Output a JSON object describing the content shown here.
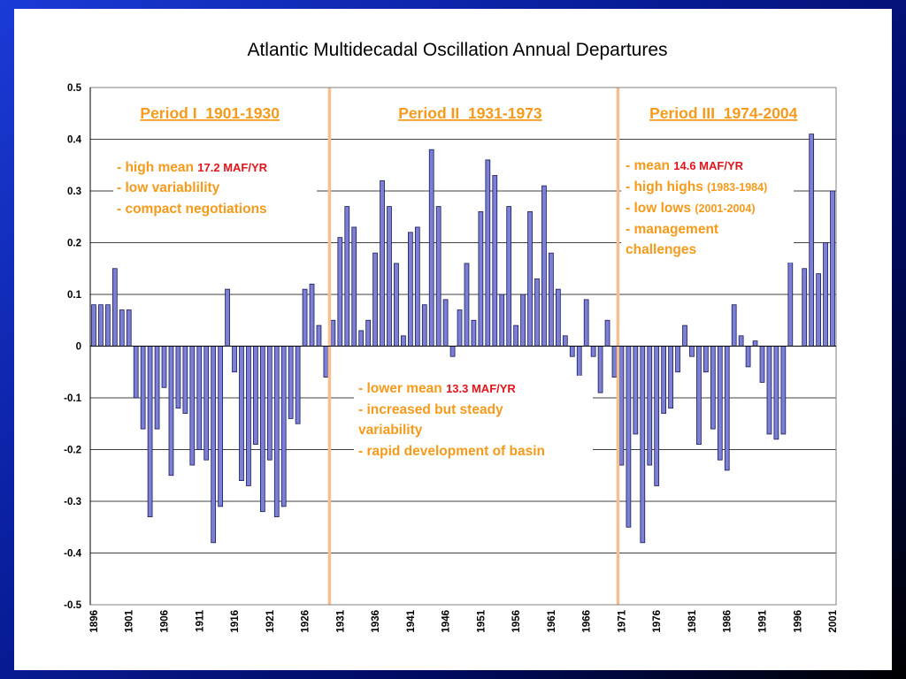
{
  "chart_data": {
    "type": "bar",
    "title": "Atlantic Multidecadal Oscillation Annual Departures",
    "ylim": [
      -0.5,
      0.5
    ],
    "yticks": [
      "0.5",
      "0.4",
      "0.3",
      "0.2",
      "0.1",
      "0",
      "-0.1",
      "-0.2",
      "-0.3",
      "-0.4",
      "-0.5"
    ],
    "ytick_values": [
      0.5,
      0.4,
      0.3,
      0.2,
      0.1,
      0,
      -0.1,
      -0.2,
      -0.3,
      -0.4,
      -0.5
    ],
    "grid": "horizontal",
    "bar_color": "#7b7fd6",
    "years": [
      1896,
      1897,
      1898,
      1899,
      1900,
      1901,
      1902,
      1903,
      1904,
      1905,
      1906,
      1907,
      1908,
      1909,
      1910,
      1911,
      1912,
      1913,
      1914,
      1915,
      1916,
      1917,
      1918,
      1919,
      1920,
      1921,
      1922,
      1923,
      1924,
      1925,
      1926,
      1927,
      1928,
      1929,
      1930,
      1931,
      1932,
      1933,
      1934,
      1935,
      1936,
      1937,
      1938,
      1939,
      1940,
      1941,
      1942,
      1943,
      1944,
      1945,
      1946,
      1947,
      1948,
      1949,
      1950,
      1951,
      1952,
      1953,
      1954,
      1955,
      1956,
      1957,
      1958,
      1959,
      1960,
      1961,
      1962,
      1963,
      1964,
      1965,
      1966,
      1967,
      1968,
      1969,
      1970,
      1971,
      1972,
      1973,
      1974,
      1975,
      1976,
      1977,
      1978,
      1979,
      1980,
      1981,
      1982,
      1983,
      1984,
      1985,
      1986,
      1987,
      1988,
      1989,
      1990,
      1991,
      1992,
      1993,
      1994,
      1995,
      1996,
      1997,
      1998,
      1999,
      2000,
      2001
    ],
    "values": [
      0.08,
      0.08,
      0.08,
      0.15,
      0.07,
      0.07,
      -0.1,
      -0.16,
      -0.33,
      -0.16,
      -0.08,
      -0.25,
      -0.12,
      -0.13,
      -0.23,
      -0.2,
      -0.22,
      -0.38,
      -0.31,
      0.11,
      -0.05,
      -0.26,
      -0.27,
      -0.19,
      -0.32,
      -0.22,
      -0.33,
      -0.31,
      -0.14,
      -0.15,
      0.11,
      0.12,
      0.04,
      -0.06,
      0.05,
      0.21,
      0.27,
      0.23,
      0.03,
      0.05,
      0.18,
      0.32,
      0.27,
      0.16,
      0.02,
      0.22,
      0.23,
      0.08,
      0.38,
      0.27,
      0.09,
      -0.02,
      0.07,
      0.16,
      0.05,
      0.26,
      0.36,
      0.33,
      0.1,
      0.27,
      0.04,
      0.1,
      0.26,
      0.13,
      0.31,
      0.18,
      0.11,
      0.02,
      -0.02,
      -0.08,
      0.09,
      -0.02,
      -0.09,
      0.05,
      -0.06,
      -0.23,
      -0.35,
      -0.17,
      -0.38,
      -0.23,
      -0.27,
      -0.13,
      -0.12,
      -0.05,
      0.04,
      -0.02,
      -0.19,
      -0.05,
      -0.16,
      -0.22,
      -0.24,
      0.08,
      0.02,
      -0.04,
      0.01,
      -0.07,
      -0.17,
      -0.18,
      -0.17,
      0.19,
      0,
      0.15,
      0.41,
      0.14,
      0.2,
      0.3
    ],
    "xtick_labels": [
      "1896",
      "1901",
      "1906",
      "1911",
      "1916",
      "1921",
      "1926",
      "1931",
      "1936",
      "1941",
      "1946",
      "1951",
      "1956",
      "1961",
      "1966",
      "1971",
      "1976",
      "1981",
      "1986",
      "1991",
      "1996",
      "2001"
    ],
    "dividers": [
      1929.5,
      1970.5
    ],
    "divider_color": "#f5c08f",
    "periods": [
      {
        "label": "Period I  1901-1930",
        "center_year": 1912.5
      },
      {
        "label": "Period II  1931-1973",
        "center_year": 1949.5
      },
      {
        "label": "Period III  1974-2004",
        "center_year": 1985.5
      }
    ]
  },
  "annotations": {
    "p1": {
      "line1_prefix": "- high mean ",
      "line1_value": "17.2 MAF/YR",
      "line2": "- low variablility",
      "line3": "- compact negotiations"
    },
    "p2": {
      "line1_prefix": "- lower mean  ",
      "line1_value": "13.3 MAF/YR",
      "line2": "- increased but steady",
      "line3": "variability",
      "line4": "- rapid development of basin"
    },
    "p3": {
      "line1_prefix": "- mean ",
      "line1_value": "14.6 MAF/YR",
      "line2_prefix": "- high highs ",
      "line2_sub": "(1983-1984)",
      "line3_prefix": "- low lows ",
      "line3_sub": "(2001-2004)",
      "line4": "- management",
      "line5": "challenges"
    }
  }
}
